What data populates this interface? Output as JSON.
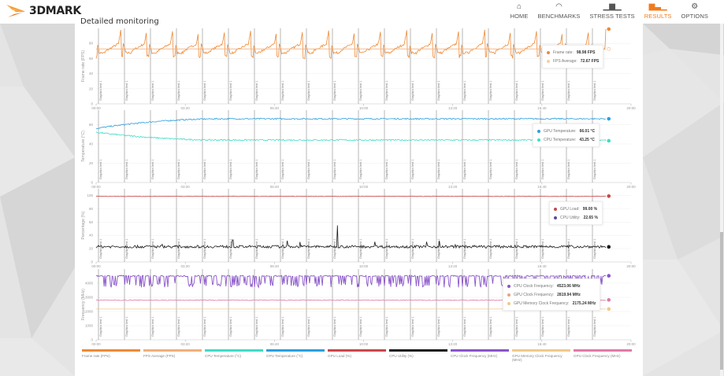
{
  "app": {
    "logo_text": "3DMARK",
    "page_title": "Detailed monitoring"
  },
  "nav": [
    {
      "label": "HOME",
      "icon": "home-icon",
      "glyph": "⌂",
      "active": false
    },
    {
      "label": "BENCHMARKS",
      "icon": "gauge-icon",
      "glyph": "◠",
      "active": false
    },
    {
      "label": "STRESS TESTS",
      "icon": "bar-chart-icon",
      "glyph": "▁▆▁",
      "active": false
    },
    {
      "label": "RESULTS",
      "icon": "results-icon",
      "glyph": "▆▃▁",
      "active": true
    },
    {
      "label": "OPTIONS",
      "icon": "gear-icon",
      "glyph": "⚙",
      "active": false
    }
  ],
  "colors": {
    "accent": "#f07b1e",
    "frame_rate": "#ee8a37",
    "fps_average": "#f2b07a",
    "cpu_temperature": "#3fdcc6",
    "gpu_temperature": "#2aa0e0",
    "gpu_load": "#c9474a",
    "cpu_utility": "#1a1a1a",
    "cpu_clock": "#8a55c9",
    "gpu_memory_clock": "#f0c98a",
    "gpu_clock": "#e07aa8"
  },
  "tooltips": {
    "fps": [
      {
        "label": "Frame rate:",
        "value": "98.98 FPS",
        "color": "#ee8a37"
      },
      {
        "label": "FPS Average:",
        "value": "72.67 FPS",
        "color": "#f6cfa6"
      }
    ],
    "temp": [
      {
        "label": "GPU Temperature:",
        "value": "66.01 °C",
        "color": "#2aa0e0"
      },
      {
        "label": "CPU Temperature:",
        "value": "43.25 °C",
        "color": "#3fdcc6"
      }
    ],
    "pct": [
      {
        "label": "GPU Load:",
        "value": "99.00 %",
        "color": "#c9474a"
      },
      {
        "label": "CPU Utility:",
        "value": "22.65 %",
        "color": "#5a4a9a"
      }
    ],
    "freq": [
      {
        "label": "CPU Clock Frequency:",
        "value": "4523.06 MHz",
        "color": "#8a55c9"
      },
      {
        "label": "GPU Clock Frequency:",
        "value": "2819.94 MHz",
        "color": "#e8a37a"
      },
      {
        "label": "GPU Memory Clock Frequency:",
        "value": "2175.24 MHz",
        "color": "#f0c98a"
      }
    ]
  },
  "legend": [
    {
      "label": "Frame rate (FPS)",
      "color": "#ee8a37"
    },
    {
      "label": "FPS Average (FPS)",
      "color": "#f2b07a"
    },
    {
      "label": "CPU Temperature (°C)",
      "color": "#3fdcc6"
    },
    {
      "label": "GPU Temperature (°C)",
      "color": "#2aa0e0"
    },
    {
      "label": "GPU Load (%)",
      "color": "#c9474a"
    },
    {
      "label": "CPU Utility (%)",
      "color": "#1a1a1a"
    },
    {
      "label": "CPU Clock Frequency (MHz)",
      "color": "#8a55c9"
    },
    {
      "label": "GPU Memory Clock Frequency (MHz)",
      "color": "#f0c98a"
    },
    {
      "label": "GPU Clock Frequency (MHz)",
      "color": "#e07aa8"
    }
  ],
  "chart_data": [
    {
      "type": "line",
      "id": "fps",
      "ylabel": "Frame rate (FPS)",
      "ylim": [
        0,
        100
      ],
      "yticks": [
        0,
        20,
        40,
        60,
        80
      ],
      "xlim": [
        0,
        1200
      ],
      "xticks": [
        "00:00",
        "03:20",
        "06:40",
        "10:00",
        "13:20",
        "16:40",
        "20:00"
      ],
      "series": [
        {
          "name": "Frame rate",
          "pattern": "periodic_spikes",
          "base": 68,
          "spike": 98,
          "dip": 60,
          "end_value": 98.98
        },
        {
          "name": "FPS Average",
          "constant": 72.67
        }
      ]
    },
    {
      "type": "line",
      "id": "temp",
      "ylabel": "Temperature (°C)",
      "ylim": [
        0,
        75
      ],
      "yticks": [
        0,
        20,
        40,
        60
      ],
      "xlim": [
        0,
        1200
      ],
      "xticks": [
        "00:00",
        "03:20",
        "06:40",
        "10:00",
        "13:20",
        "16:40",
        "20:00"
      ],
      "series": [
        {
          "name": "GPU Temperature",
          "start": 56,
          "plateau": 66,
          "end_value": 66.01
        },
        {
          "name": "CPU Temperature",
          "start": 52,
          "plateau": 44,
          "end_value": 43.25
        }
      ]
    },
    {
      "type": "line",
      "id": "pct",
      "ylabel": "Percentage (%)",
      "ylim": [
        0,
        110
      ],
      "yticks": [
        0,
        20,
        40,
        60,
        80,
        100
      ],
      "xlim": [
        0,
        1200
      ],
      "xticks": [
        "00:00",
        "03:20",
        "06:40",
        "10:00",
        "13:20",
        "16:40",
        "20:00"
      ],
      "series": [
        {
          "name": "GPU Load",
          "constant": 99,
          "end_value": 99.0
        },
        {
          "name": "CPU Utility",
          "base": 23,
          "max_spike": 55,
          "end_value": 22.65
        }
      ]
    },
    {
      "type": "line",
      "id": "freq",
      "ylabel": "Frequency (MHz)",
      "ylim": [
        0,
        5000
      ],
      "yticks": [
        0,
        1000,
        2000,
        3000,
        4000
      ],
      "xlim": [
        0,
        1200
      ],
      "xticks": [
        "00:00",
        "03:20",
        "06:40",
        "10:00",
        "13:20",
        "16:40",
        "20:00"
      ],
      "series": [
        {
          "name": "CPU Clock Frequency",
          "high": 4550,
          "low": 3700,
          "end_value": 4523.06
        },
        {
          "name": "GPU Clock Frequency",
          "constant": 2800,
          "end_value": 2819.94
        },
        {
          "name": "GPU Memory Clock Frequency",
          "constant": 2175,
          "end_value": 2175.24
        }
      ]
    }
  ],
  "markers": {
    "label": "Graphics test 1",
    "count": 20
  }
}
